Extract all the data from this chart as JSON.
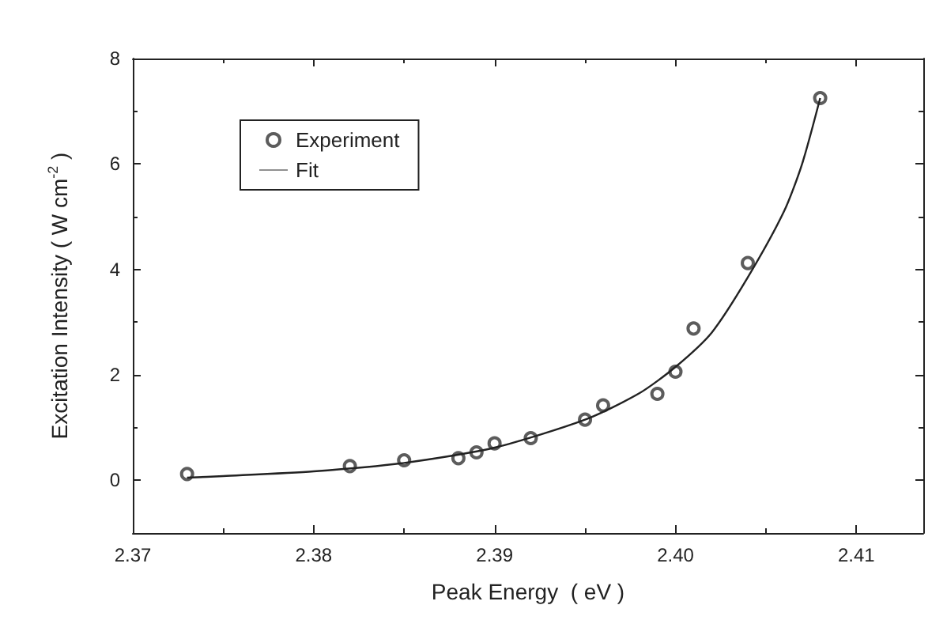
{
  "chart_data": {
    "type": "scatter",
    "xlabel": "Peak Energy  ( eV )",
    "ylabel": "Excitation Intensity ( W cm$^{-2}$ )",
    "xlim": [
      2.37,
      2.4137
    ],
    "xticks": [
      2.37,
      2.38,
      2.39,
      {
        "value": 2.4,
        "label": "2.40"
      },
      2.41
    ],
    "ylim": [
      -1,
      8
    ],
    "yticks": [
      0,
      2,
      4,
      6,
      8
    ],
    "grid": false,
    "legend": "top left",
    "series": [
      {
        "name": "Experiment",
        "marker": "circle",
        "color": "#333333",
        "x": [
          2.373,
          2.382,
          2.385,
          2.388,
          2.389,
          2.39,
          2.392,
          2.395,
          2.396,
          2.399,
          2.4,
          2.401,
          2.404,
          2.408
        ],
        "values": [
          0.12,
          0.27,
          0.38,
          0.42,
          0.53,
          0.7,
          0.8,
          1.15,
          1.42,
          1.64,
          2.06,
          2.88,
          4.12,
          7.25
        ]
      },
      {
        "name": "Fit",
        "type": "line",
        "marker": "none",
        "line_style": "solid",
        "color": "#222222",
        "x": [
          2.373,
          2.375,
          2.38,
          2.385,
          2.39,
          2.395,
          2.398,
          2.4,
          2.402,
          2.404,
          2.406,
          2.407,
          2.408
        ],
        "values": [
          0.05,
          0.08,
          0.17,
          0.33,
          0.62,
          1.15,
          1.65,
          2.15,
          2.8,
          3.85,
          5.1,
          6.0,
          7.25
        ]
      }
    ]
  }
}
